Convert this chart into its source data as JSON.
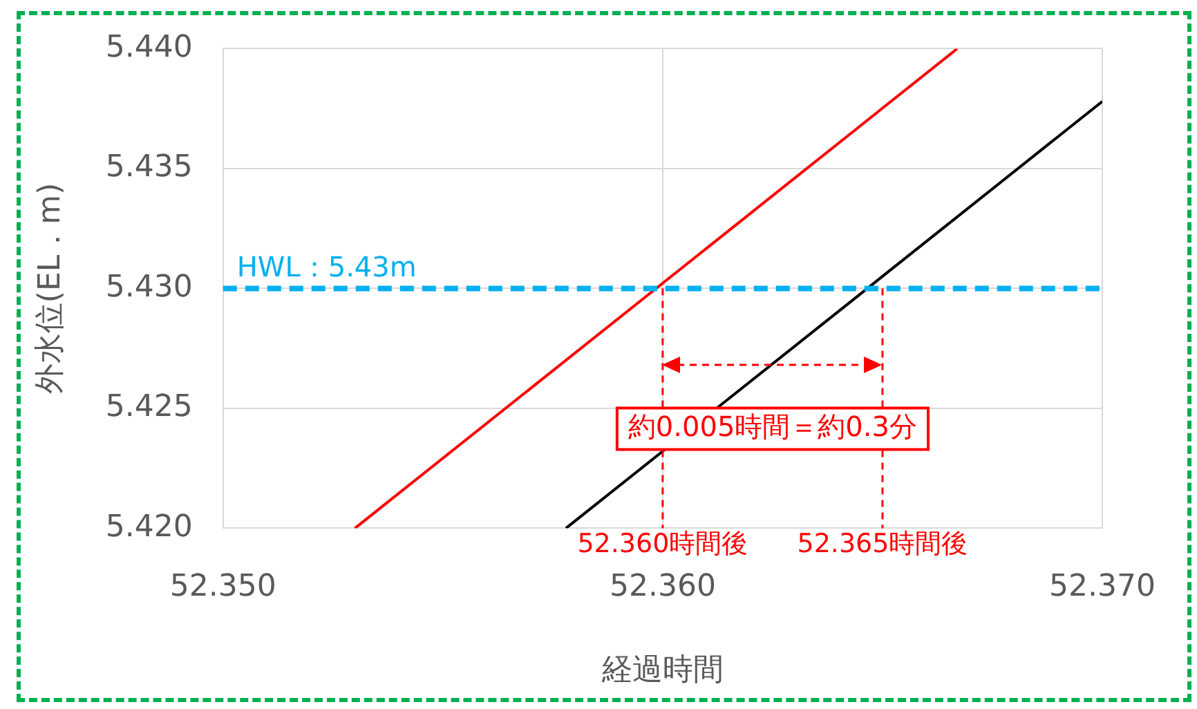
{
  "chart_data": {
    "type": "line",
    "xlabel": "経過時間",
    "ylabel": "外水位(EL．m)",
    "xlim": [
      52.35,
      52.37
    ],
    "xticks": [
      {
        "value": 52.35,
        "label": "52.350"
      },
      {
        "value": 52.36,
        "label": "52.360"
      },
      {
        "value": 52.37,
        "label": "52.370"
      }
    ],
    "ylim": [
      5.42,
      5.44
    ],
    "yticks": [
      {
        "value": 5.42,
        "label": "5.420"
      },
      {
        "value": 5.425,
        "label": "5.425"
      },
      {
        "value": 5.43,
        "label": "5.430"
      },
      {
        "value": 5.435,
        "label": "5.435"
      },
      {
        "value": 5.44,
        "label": "5.440"
      }
    ],
    "series": [
      {
        "color": "#ff0000",
        "x": [
          52.353,
          52.3667
        ],
        "values": [
          5.42,
          5.44
        ]
      },
      {
        "color": "#000000",
        "x": [
          52.3578,
          52.37
        ],
        "values": [
          5.42,
          5.4378
        ]
      }
    ],
    "ref_lines": [
      {
        "axis": "y",
        "value": 5.43,
        "label": "HWL：5.43m",
        "color": "#00b0f0",
        "line_style": "dashed"
      }
    ],
    "annotations": [
      {
        "text": "52.360時間後",
        "x": 52.36,
        "y": 5.43
      },
      {
        "text": "52.365時間後",
        "x": 52.365,
        "y": 5.43
      },
      "約0.005時間＝約0.3分"
    ],
    "grid": true,
    "marker": "none",
    "line_style": "solid",
    "legend": false
  }
}
